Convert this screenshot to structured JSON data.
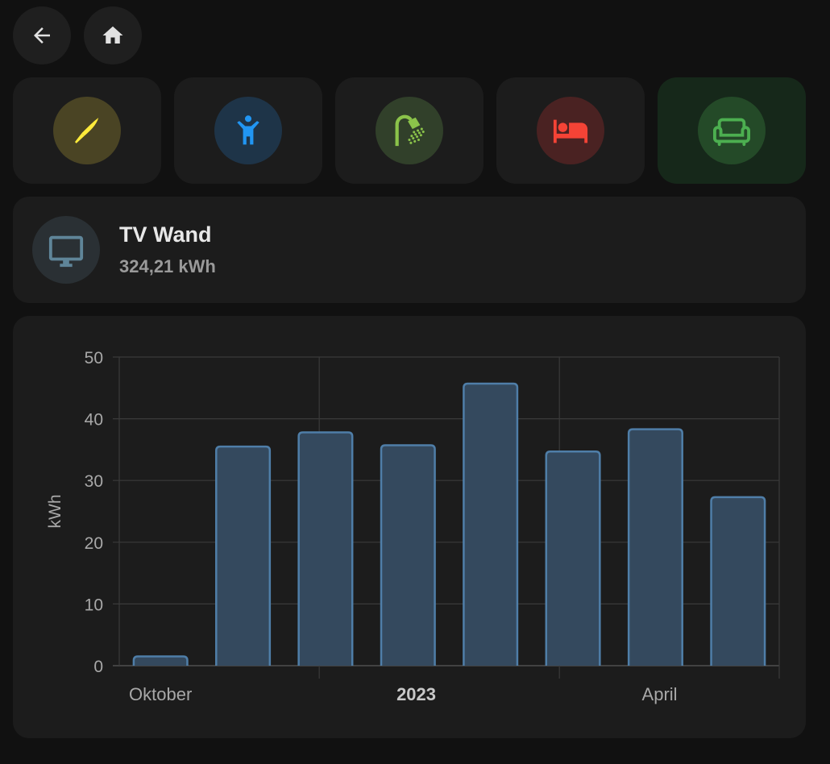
{
  "nav": {
    "back_icon": "arrow-left-icon",
    "home_icon": "home-icon"
  },
  "rooms": [
    {
      "icon": "knife-icon",
      "color": "#ffeb3b",
      "bg": "#4a4424",
      "active": false
    },
    {
      "icon": "child-icon",
      "color": "#2196f3",
      "bg": "#1e3448",
      "active": false
    },
    {
      "icon": "shower-icon",
      "color": "#8bc34a",
      "bg": "#31402a",
      "active": false
    },
    {
      "icon": "bed-icon",
      "color": "#f44336",
      "bg": "#4a2222",
      "active": false
    },
    {
      "icon": "sofa-icon",
      "color": "#4caf50",
      "bg": "#244a28",
      "active": true
    }
  ],
  "entity": {
    "name": "TV Wand",
    "state": "324,21 kWh",
    "icon": "monitor-icon"
  },
  "chart_data": {
    "type": "bar",
    "categories": [
      "",
      "",
      "",
      "",
      "",
      "",
      "",
      ""
    ],
    "values": [
      1.5,
      35.5,
      37.8,
      35.7,
      45.7,
      34.7,
      38.3,
      27.3
    ],
    "ylabel": "kWh",
    "ylim": [
      0,
      50
    ],
    "yticks": [
      0,
      10,
      20,
      30,
      40,
      50
    ],
    "xticks": [
      {
        "label": "Oktober",
        "position": 0,
        "bold": false
      },
      {
        "label": "2023",
        "position": 3.1,
        "bold": true
      },
      {
        "label": "April",
        "position": 6.05,
        "bold": false
      }
    ],
    "grid": true,
    "bar_color": "#34495e",
    "bar_border": "#4f7ea8"
  }
}
